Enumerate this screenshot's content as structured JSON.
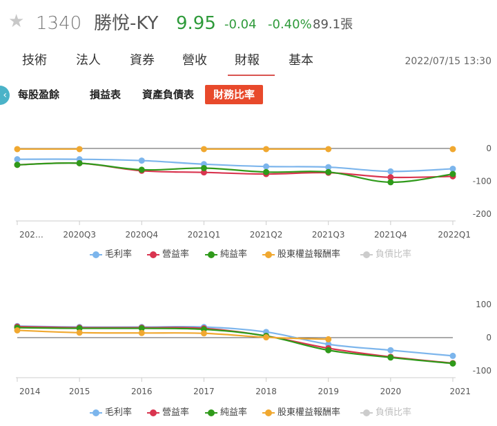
{
  "header": {
    "star_icon": "star-icon",
    "code": "1340",
    "name": "勝悅-KY",
    "price": "9.95",
    "change": "-0.04",
    "change_pct": "-0.40%",
    "volume": "89.1張"
  },
  "tabs": [
    {
      "label": "技術"
    },
    {
      "label": "法人"
    },
    {
      "label": "資券"
    },
    {
      "label": "營收"
    },
    {
      "label": "財報",
      "active": true
    },
    {
      "label": "基本"
    }
  ],
  "datetime": "2022/07/15 13:30",
  "subtabs": [
    {
      "label": "每股盈餘"
    },
    {
      "label": "損益表"
    },
    {
      "label": "資產負債表"
    },
    {
      "label": "財務比率",
      "active": true
    }
  ],
  "legend": [
    {
      "label": "毛利率",
      "color": "#7cb5ec"
    },
    {
      "label": "營益率",
      "color": "#d9344f"
    },
    {
      "label": "純益率",
      "color": "#2f9a1a"
    },
    {
      "label": "股東權益報酬率",
      "color": "#f0a830"
    },
    {
      "label": "負債比率",
      "color": "#cccccc",
      "disabled": true
    }
  ],
  "chart_data": [
    {
      "type": "line",
      "categories": [
        "202…",
        "2020Q3",
        "2020Q4",
        "2021Q1",
        "2021Q2",
        "2021Q3",
        "2021Q4",
        "2022Q1"
      ],
      "yticks": [
        0,
        -100,
        -200
      ],
      "ylim": [
        -200,
        0
      ],
      "series": [
        {
          "name": "毛利率",
          "color": "#7cb5ec",
          "values": [
            -33,
            -33,
            -37,
            -48,
            -55,
            -57,
            -70,
            -62
          ]
        },
        {
          "name": "營益率",
          "color": "#d9344f",
          "values": [
            -50,
            -45,
            -68,
            -73,
            -78,
            -74,
            -88,
            -85
          ]
        },
        {
          "name": "純益率",
          "color": "#2f9a1a",
          "values": [
            -50,
            -45,
            -65,
            -60,
            -72,
            -72,
            -103,
            -78
          ]
        },
        {
          "name": "股東權益報酬率",
          "color": "#f0a830",
          "values": [
            -2,
            -2,
            null,
            -2,
            -2,
            -2,
            null,
            -2
          ]
        }
      ]
    },
    {
      "type": "line",
      "categories": [
        "2014",
        "2015",
        "2016",
        "2017",
        "2018",
        "2019",
        "2020",
        "2021"
      ],
      "yticks": [
        100,
        0,
        -100
      ],
      "ylim": [
        -100,
        100
      ],
      "series": [
        {
          "name": "毛利率",
          "color": "#7cb5ec",
          "values": [
            35,
            32,
            32,
            32,
            17,
            -20,
            -38,
            -55
          ]
        },
        {
          "name": "營益率",
          "color": "#d9344f",
          "values": [
            33,
            30,
            30,
            28,
            5,
            -32,
            -58,
            -77
          ]
        },
        {
          "name": "純益率",
          "color": "#2f9a1a",
          "values": [
            30,
            28,
            28,
            25,
            5,
            -38,
            -60,
            -78
          ]
        },
        {
          "name": "股東權益報酬率",
          "color": "#f0a830",
          "values": [
            22,
            15,
            14,
            13,
            1,
            -5,
            null,
            null
          ]
        }
      ]
    }
  ]
}
